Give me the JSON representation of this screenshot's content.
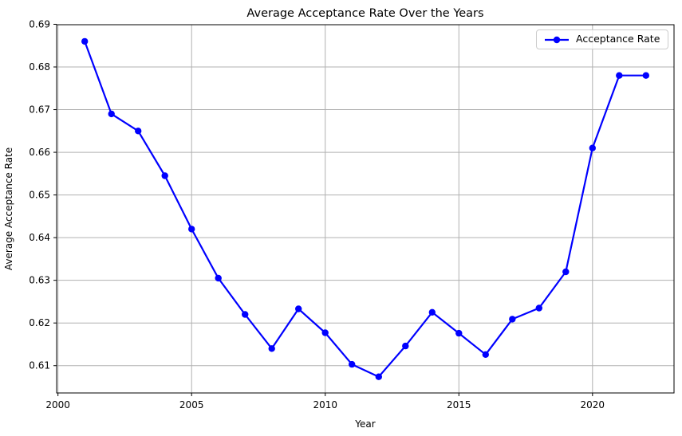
{
  "chart_data": {
    "type": "line",
    "title": "Average Acceptance Rate Over the Years",
    "xlabel": "Year",
    "ylabel": "Average Acceptance Rate",
    "grid": true,
    "grid_color": "#b0b0b0",
    "background": "#ffffff",
    "xlim": [
      1999.95,
      2023.05
    ],
    "ylim": [
      0.6036,
      0.6899
    ],
    "xticks": [
      2000,
      2005,
      2010,
      2015,
      2020
    ],
    "xtick_labels": [
      "2000",
      "2005",
      "2010",
      "2015",
      "2020"
    ],
    "yticks": [
      0.61,
      0.62,
      0.63,
      0.64,
      0.65,
      0.66,
      0.67,
      0.68,
      0.69
    ],
    "ytick_labels": [
      "0.61",
      "0.62",
      "0.63",
      "0.64",
      "0.65",
      "0.66",
      "0.67",
      "0.68",
      "0.69"
    ],
    "legend": {
      "position": "upper right",
      "entries": [
        "Acceptance Rate"
      ]
    },
    "series": [
      {
        "name": "Acceptance Rate",
        "color": "#0000ff",
        "marker": "circle",
        "x": [
          2001,
          2002,
          2003,
          2004,
          2005,
          2006,
          2007,
          2008,
          2009,
          2010,
          2011,
          2012,
          2013,
          2014,
          2015,
          2016,
          2017,
          2018,
          2019,
          2020,
          2021,
          2022
        ],
        "values": [
          0.686,
          0.669,
          0.665,
          0.6545,
          0.642,
          0.6305,
          0.622,
          0.614,
          0.6233,
          0.6177,
          0.6103,
          0.6074,
          0.6146,
          0.6225,
          0.6176,
          0.6126,
          0.6209,
          0.6235,
          0.632,
          0.661,
          0.678,
          0.678
        ]
      }
    ]
  }
}
